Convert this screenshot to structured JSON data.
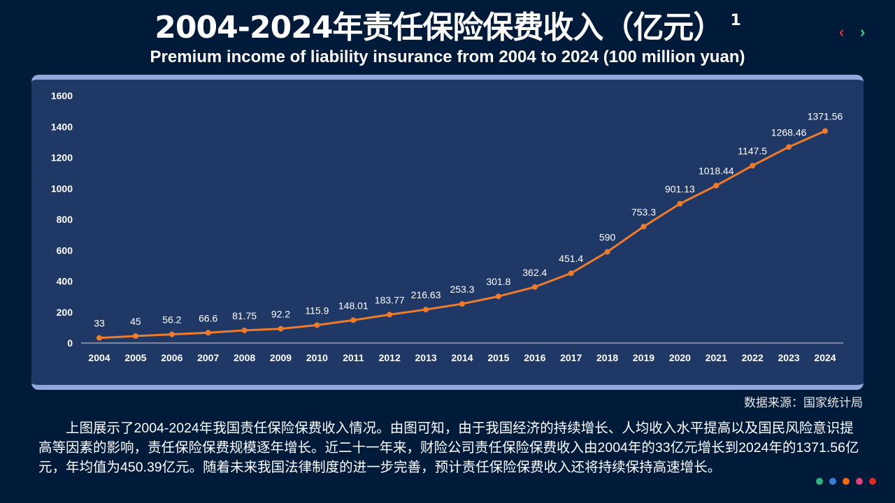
{
  "title": "2004-2024年责任保险保费收入（亿元）",
  "title_sup": "1",
  "subtitle": "Premium income of liability insurance from 2004 to 2024 (100 million yuan)",
  "nav": {
    "prev": "‹",
    "next": "›",
    "prev_color": "#e8302a",
    "next_color": "#2fd08a"
  },
  "source": "数据来源：国家统计局",
  "paragraph": "上图展示了2004-2024年我国责任保险保费收入情况。由图可知，由于我国经济的持续增长、人均收入水平提高以及国民风险意识提高等因素的影响，责任保险保费规模逐年增长。近二十一年来，财险公司责任保险保费收入由2004年的33亿元增长到2024年的1371.56亿元，年均值为450.39亿元。随着未来我国法律制度的进一步完善，预计责任保险保费收入还将持续保持高速增长。",
  "dots": [
    "#2db37a",
    "#3b7fd6",
    "#f36a10",
    "#e0407a",
    "#e02a22"
  ],
  "chart_data": {
    "type": "line",
    "x": [
      "2004",
      "2005",
      "2006",
      "2007",
      "2008",
      "2009",
      "2010",
      "2011",
      "2012",
      "2013",
      "2014",
      "2015",
      "2016",
      "2017",
      "2018",
      "2019",
      "2020",
      "2021",
      "2022",
      "2023",
      "2024"
    ],
    "values": [
      33,
      45,
      56.2,
      66.6,
      81.75,
      92.2,
      115.9,
      148.01,
      183.77,
      216.63,
      253.3,
      301.8,
      362.4,
      451.4,
      590,
      753.3,
      901.13,
      1018.44,
      1147.5,
      1268.46,
      1371.56
    ],
    "labels": [
      "33",
      "45",
      "56.2",
      "66.6",
      "81.75",
      "92.2",
      "115.9",
      "148.01",
      "183.77",
      "216.63",
      "253.3",
      "301.8",
      "362.4",
      "451.4",
      "590",
      "753.3",
      "901.13",
      "1018.44",
      "1147.5",
      "1268.46",
      "1371.56"
    ],
    "ylim": [
      0,
      1600
    ],
    "yticks": [
      "0",
      "200",
      "400",
      "600",
      "800",
      "1000",
      "1200",
      "1400",
      "1600"
    ],
    "grid": false,
    "line_color": "#f07b2a"
  }
}
